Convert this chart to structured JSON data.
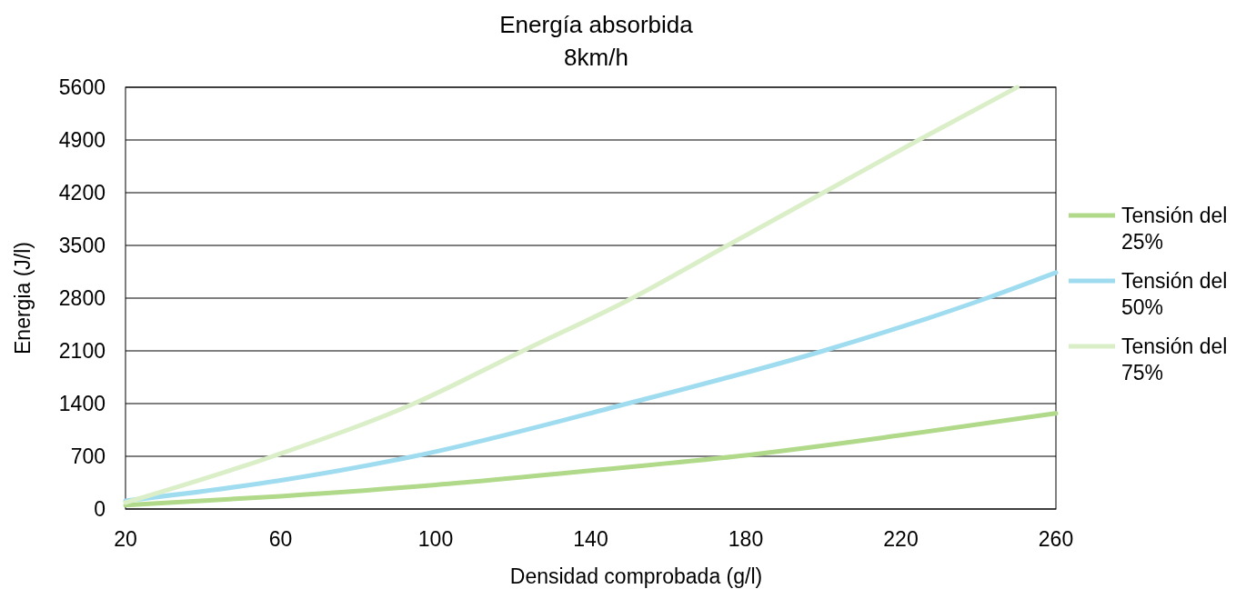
{
  "chart_data": {
    "type": "line",
    "title": "Energía absorbida",
    "subtitle": "8km/h",
    "xlabel": "Densidad comprobada (g/l)",
    "ylabel": "Energia (J/l)",
    "xlim": [
      20,
      260
    ],
    "xticks": [
      20,
      60,
      100,
      140,
      180,
      220,
      260
    ],
    "ylim": [
      0,
      5600
    ],
    "yticks": [
      0,
      700,
      1400,
      2100,
      2800,
      3500,
      4200,
      4900,
      5600
    ],
    "grid": "y",
    "legend": "right",
    "marker": "none",
    "line_style": "solid",
    "series": [
      {
        "name": "Tensión del 25%",
        "color": "#b0d98a",
        "x": [
          20,
          60,
          100,
          140,
          177.6,
          220,
          260
        ],
        "values": [
          50,
          170,
          320,
          510,
          700,
          980,
          1270
        ]
      },
      {
        "name": "Tensión del 50%",
        "color": "#a0dcf0",
        "x": [
          20,
          60,
          94.4,
          149.5,
          200,
          242.2,
          260
        ],
        "values": [
          110,
          380,
          700,
          1400,
          2100,
          2800,
          3140
        ]
      },
      {
        "name": "Tensión del 75%",
        "color": "#daefc8",
        "x": [
          20,
          58,
          94.4,
          122.5,
          150.7,
          175.3,
          200,
          224.6,
          250
        ],
        "values": [
          85,
          700,
          1400,
          2100,
          2800,
          3500,
          4200,
          4900,
          5600
        ]
      }
    ]
  }
}
